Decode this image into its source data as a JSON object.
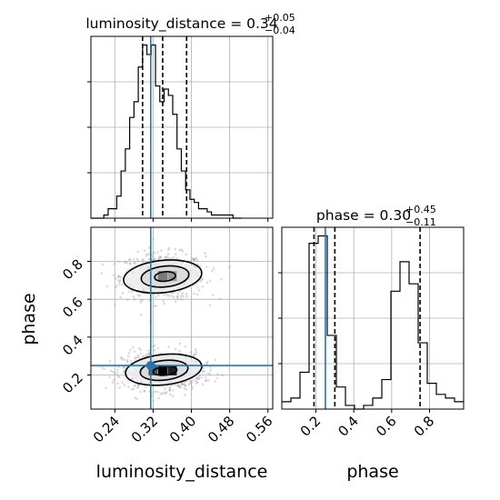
{
  "chart_data": [
    {
      "panel": "luminosity_distance histogram",
      "type": "histogram",
      "title_param": "luminosity_distance",
      "title_value": "0.34",
      "title_plus": "+0.05",
      "title_minus": "−0.04",
      "xlim": [
        0.19,
        0.57
      ],
      "bin_edges": [
        0.19,
        0.199,
        0.208,
        0.217,
        0.226,
        0.235,
        0.244,
        0.253,
        0.262,
        0.271,
        0.28,
        0.289,
        0.298,
        0.307,
        0.316,
        0.325,
        0.334,
        0.343,
        0.352,
        0.361,
        0.37,
        0.379,
        0.388,
        0.397,
        0.406,
        0.415,
        0.424,
        0.433,
        0.442,
        0.451,
        0.46,
        0.469,
        0.478,
        0.487,
        0.496,
        0.505
      ],
      "counts": [
        0,
        0,
        0,
        1,
        3,
        3,
        7,
        15,
        22,
        32,
        37,
        48,
        55,
        52,
        55,
        42,
        37,
        41,
        39,
        33,
        22,
        15,
        9,
        6,
        5,
        3,
        3,
        2,
        1,
        1,
        1,
        1,
        1,
        0,
        0
      ],
      "quantile_lines": [
        0.298,
        0.34,
        0.39
      ],
      "truth": 0.315
    },
    {
      "panel": "phase histogram",
      "type": "histogram",
      "title_param": "phase",
      "title_value": "0.30",
      "title_plus": "+0.45",
      "title_minus": "−0.11",
      "xlim": [
        0.02,
        0.98
      ],
      "bin_edges": [
        0.02,
        0.068,
        0.116,
        0.164,
        0.212,
        0.26,
        0.308,
        0.356,
        0.404,
        0.452,
        0.5,
        0.548,
        0.596,
        0.644,
        0.692,
        0.74,
        0.788,
        0.836,
        0.884,
        0.932,
        0.98
      ],
      "counts": [
        2,
        3,
        10,
        45,
        47,
        20,
        6,
        1,
        0,
        1,
        3,
        8,
        32,
        40,
        34,
        18,
        7,
        4,
        3,
        2
      ],
      "quantile_lines": [
        0.19,
        0.3,
        0.75
      ],
      "truth": 0.25
    },
    {
      "panel": "2D posterior",
      "type": "scatter",
      "xlabel": "luminosity_distance",
      "ylabel": "phase",
      "xlim": [
        0.19,
        0.57
      ],
      "ylim": [
        0.02,
        0.98
      ],
      "truth": [
        0.315,
        0.25
      ],
      "clusters": [
        {
          "x": 0.34,
          "y": 0.722,
          "sx": 0.042,
          "sy": 0.06,
          "weight": 0.45
        },
        {
          "x": 0.34,
          "y": 0.22,
          "sx": 0.04,
          "sy": 0.05,
          "weight": 0.55
        }
      ],
      "contours": [
        {
          "x": 0.345,
          "y": 0.72,
          "rx": 0.022,
          "ry": 0.025
        },
        {
          "x": 0.345,
          "y": 0.72,
          "rx": 0.05,
          "ry": 0.055
        },
        {
          "x": 0.34,
          "y": 0.72,
          "rx": 0.082,
          "ry": 0.085
        },
        {
          "x": 0.345,
          "y": 0.222,
          "rx": 0.025,
          "ry": 0.023
        },
        {
          "x": 0.343,
          "y": 0.225,
          "rx": 0.05,
          "ry": 0.052
        },
        {
          "x": 0.342,
          "y": 0.228,
          "rx": 0.08,
          "ry": 0.08
        }
      ],
      "dense_cells": [
        {
          "x": 0.34,
          "y": 0.72,
          "shade": "#7a7a7a"
        },
        {
          "x": 0.36,
          "y": 0.72,
          "shade": "#9a9a9a"
        },
        {
          "x": 0.34,
          "y": 0.222,
          "shade": "#000000"
        },
        {
          "x": 0.36,
          "y": 0.222,
          "shade": "#202020"
        },
        {
          "x": 0.32,
          "y": 0.222,
          "shade": "#555555"
        }
      ]
    }
  ],
  "axes": {
    "x_ticks_distance": [
      "0.24",
      "0.32",
      "0.40",
      "0.48",
      "0.56"
    ],
    "x_ticks_distance_values": [
      0.24,
      0.32,
      0.4,
      0.48,
      0.56
    ],
    "y_ticks_phase": [
      "0.2",
      "0.4",
      "0.6",
      "0.8"
    ],
    "y_ticks_phase_values": [
      0.2,
      0.4,
      0.6,
      0.8
    ],
    "x_ticks_phase": [
      "0.2",
      "0.4",
      "0.6",
      "0.8"
    ],
    "x_ticks_phase_values": [
      0.2,
      0.4,
      0.6,
      0.8
    ],
    "xlabel_left": "luminosity_distance",
    "xlabel_right": "phase",
    "ylabel": "phase"
  },
  "colors": {
    "truth": "#1f77b4",
    "grid": "#b0b0b0",
    "hist": "#000000",
    "scatter": "#999999"
  }
}
